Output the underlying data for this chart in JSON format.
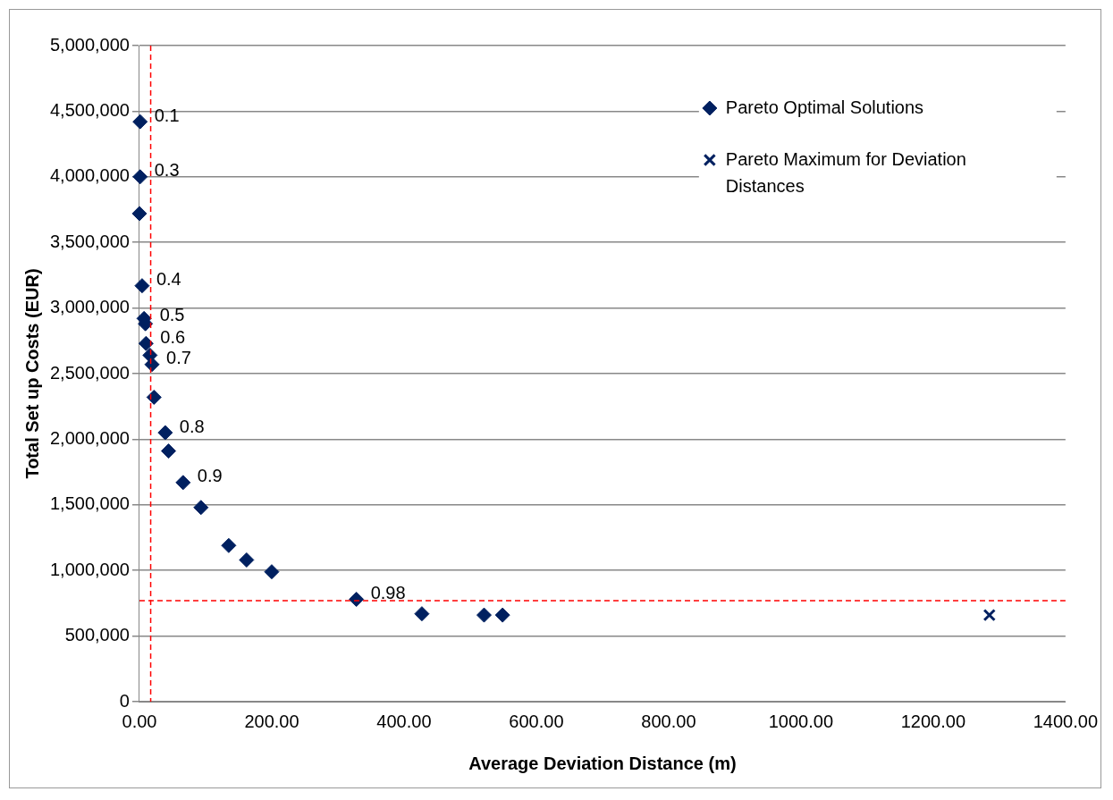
{
  "chart_data": {
    "type": "scatter",
    "xlabel": "Average Deviation Distance (m)",
    "ylabel": "Total Set up Costs (EUR)",
    "xlim": [
      0,
      1400
    ],
    "xticks": [
      {
        "value": 0,
        "label": "0.00"
      },
      {
        "value": 200,
        "label": "200.00"
      },
      {
        "value": 400,
        "label": "400.00"
      },
      {
        "value": 600,
        "label": "600.00"
      },
      {
        "value": 800,
        "label": "800.00"
      },
      {
        "value": 1000,
        "label": "1000.00"
      },
      {
        "value": 1200,
        "label": "1200.00"
      },
      {
        "value": 1400,
        "label": "1400.00"
      }
    ],
    "ylim": [
      0,
      5000000
    ],
    "yticks": [
      {
        "value": 0,
        "label": "0"
      },
      {
        "value": 500000,
        "label": "500,000"
      },
      {
        "value": 1000000,
        "label": "1,000,000"
      },
      {
        "value": 1500000,
        "label": "1,500,000"
      },
      {
        "value": 2000000,
        "label": "2,000,000"
      },
      {
        "value": 2500000,
        "label": "2,500,000"
      },
      {
        "value": 3000000,
        "label": "3,000,000"
      },
      {
        "value": 3500000,
        "label": "3,500,000"
      },
      {
        "value": 4000000,
        "label": "4,000,000"
      },
      {
        "value": 4500000,
        "label": "4,500,000"
      },
      {
        "value": 5000000,
        "label": "5,000,000"
      }
    ],
    "grid": "y",
    "legend": "top right",
    "series": [
      {
        "name": "Pareto Optimal Solutions",
        "color": "#002060",
        "marker": "diamond",
        "x": [
          1,
          1,
          0,
          4,
          7,
          9,
          10,
          16,
          19,
          22,
          39,
          44,
          66,
          93,
          135,
          162,
          200,
          328,
          427,
          521,
          549
        ],
        "values": [
          4420000,
          4000000,
          3720000,
          3170000,
          2920000,
          2880000,
          2730000,
          2640000,
          2570000,
          2320000,
          2050000,
          1910000,
          1670000,
          1480000,
          1190000,
          1080000,
          990000,
          780000,
          670000,
          660000,
          660000
        ]
      },
      {
        "name": "Pareto Maximum for Deviation Distances",
        "color": "#002060",
        "marker": "cross",
        "x": [
          1285
        ],
        "values": [
          660000
        ]
      }
    ],
    "ref_lines": [
      {
        "axis": "x",
        "value": 17,
        "color": "#ff0000",
        "line_style": "dashed"
      },
      {
        "axis": "y",
        "value": 770000,
        "color": "#ff0000",
        "line_style": "dashed"
      }
    ],
    "annotations": [
      {
        "text": "0.1",
        "x": 1,
        "y": 4420000
      },
      {
        "text": "0.3",
        "x": 1,
        "y": 4000000
      },
      {
        "text": "0.4",
        "x": 4,
        "y": 3170000
      },
      {
        "text": "0.5",
        "x": 9,
        "y": 2900000
      },
      {
        "text": "0.6",
        "x": 10,
        "y": 2730000
      },
      {
        "text": "0.7",
        "x": 19,
        "y": 2570000
      },
      {
        "text": "0.8",
        "x": 39,
        "y": 2050000
      },
      {
        "text": "0.9",
        "x": 66,
        "y": 1670000
      },
      {
        "text": "0.98",
        "x": 328,
        "y": 780000
      }
    ]
  }
}
